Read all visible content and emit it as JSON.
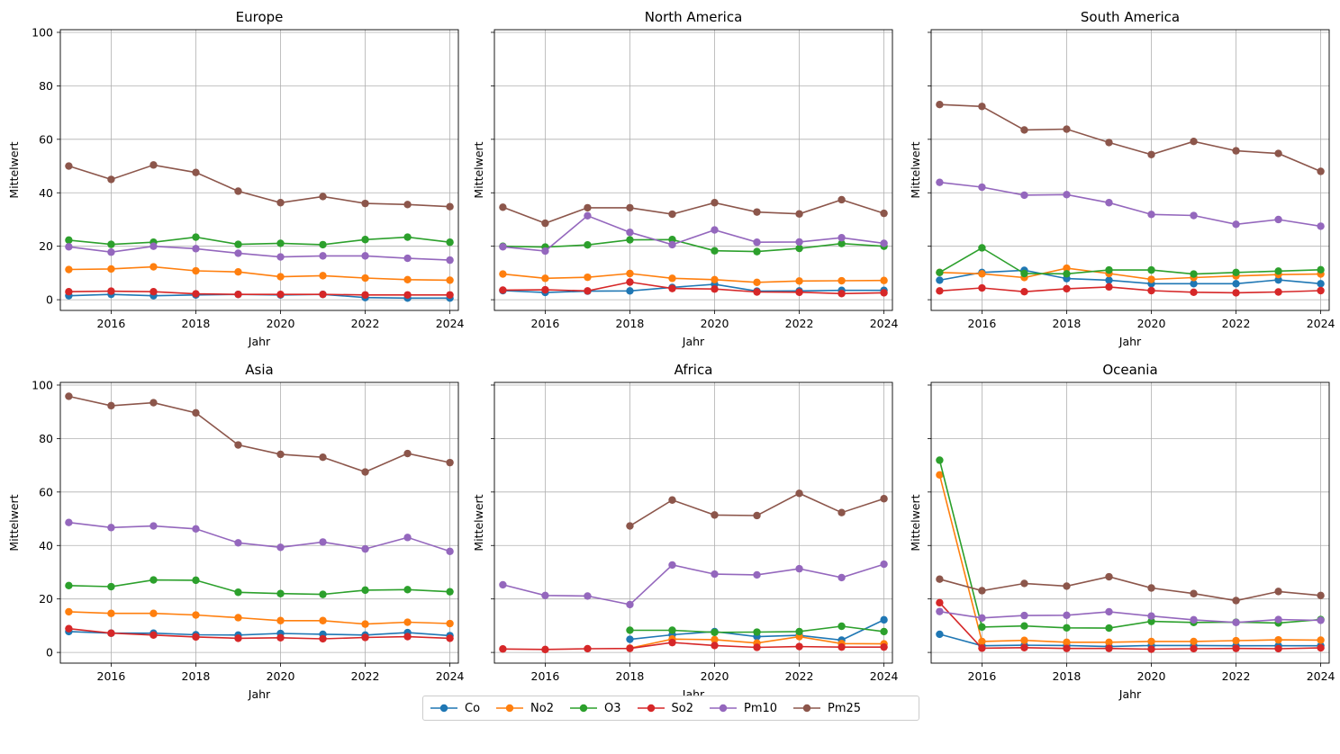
{
  "chart_data": {
    "type": "line",
    "xlabel": "Jahr",
    "ylabel": "Mittelwert",
    "xlim": [
      2014.8,
      2024.2
    ],
    "ylim": [
      -4,
      101
    ],
    "xticks": [
      2016,
      2018,
      2020,
      2022,
      2024
    ],
    "yticks": [
      0,
      20,
      40,
      60,
      80,
      100
    ],
    "grid": true,
    "legend_placement": "bottom-center",
    "legend": [
      {
        "name": "Co",
        "color": "#1f77b4"
      },
      {
        "name": "No2",
        "color": "#ff7f0e"
      },
      {
        "name": "O3",
        "color": "#2ca02c"
      },
      {
        "name": "So2",
        "color": "#d62728"
      },
      {
        "name": "Pm10",
        "color": "#9467bd"
      },
      {
        "name": "Pm25",
        "color": "#8c564b"
      }
    ],
    "panels": [
      {
        "title": "Europe",
        "series": [
          {
            "name": "Co",
            "x": [
              2015,
              2016,
              2017,
              2018,
              2019,
              2020,
              2021,
              2022,
              2023,
              2024
            ],
            "values": [
              1.5,
              2.0,
              1.5,
              1.8,
              2.0,
              1.8,
              2.0,
              0.8,
              0.6,
              0.6
            ]
          },
          {
            "name": "No2",
            "x": [
              2015,
              2016,
              2017,
              2018,
              2019,
              2020,
              2021,
              2022,
              2023,
              2024
            ],
            "values": [
              11.3,
              11.5,
              12.3,
              10.8,
              10.4,
              8.6,
              9.0,
              8.1,
              7.5,
              7.3
            ]
          },
          {
            "name": "O3",
            "x": [
              2015,
              2016,
              2017,
              2018,
              2019,
              2020,
              2021,
              2022,
              2023,
              2024
            ],
            "values": [
              22.3,
              20.7,
              21.5,
              23.4,
              20.7,
              21.1,
              20.6,
              22.5,
              23.4,
              21.5
            ]
          },
          {
            "name": "So2",
            "x": [
              2015,
              2016,
              2017,
              2018,
              2019,
              2020,
              2021,
              2022,
              2023,
              2024
            ],
            "values": [
              3.0,
              3.2,
              3.0,
              2.2,
              2.0,
              2.0,
              2.0,
              1.8,
              1.8,
              1.8
            ]
          },
          {
            "name": "Pm10",
            "x": [
              2015,
              2016,
              2017,
              2018,
              2019,
              2020,
              2021,
              2022,
              2023,
              2024
            ],
            "values": [
              19.8,
              17.8,
              20.0,
              19.1,
              17.4,
              16.0,
              16.4,
              16.4,
              15.5,
              14.8
            ]
          },
          {
            "name": "Pm25",
            "x": [
              2015,
              2016,
              2017,
              2018,
              2019,
              2020,
              2021,
              2022,
              2023,
              2024
            ],
            "values": [
              50.0,
              45.0,
              50.4,
              47.6,
              40.6,
              36.3,
              38.6,
              36.0,
              35.6,
              34.8
            ]
          }
        ]
      },
      {
        "title": "North America",
        "series": [
          {
            "name": "Co",
            "x": [
              2015,
              2016,
              2017,
              2018,
              2019,
              2020,
              2021,
              2022,
              2023,
              2024
            ],
            "values": [
              3.4,
              2.7,
              3.2,
              3.3,
              4.6,
              5.8,
              3.2,
              3.3,
              3.5,
              3.5
            ]
          },
          {
            "name": "No2",
            "x": [
              2015,
              2016,
              2017,
              2018,
              2019,
              2020,
              2021,
              2022,
              2023,
              2024
            ],
            "values": [
              9.6,
              8.0,
              8.4,
              9.8,
              8.0,
              7.5,
              6.5,
              7.0,
              7.1,
              7.2
            ]
          },
          {
            "name": "O3",
            "x": [
              2015,
              2016,
              2017,
              2018,
              2019,
              2020,
              2021,
              2022,
              2023,
              2024
            ],
            "values": [
              20.0,
              19.7,
              20.5,
              22.4,
              22.5,
              18.3,
              18.0,
              19.2,
              21.0,
              20.0
            ]
          },
          {
            "name": "So2",
            "x": [
              2015,
              2016,
              2017,
              2018,
              2019,
              2020,
              2021,
              2022,
              2023,
              2024
            ],
            "values": [
              3.6,
              3.7,
              3.3,
              6.6,
              4.2,
              4.0,
              2.9,
              2.8,
              2.3,
              2.6
            ]
          },
          {
            "name": "Pm10",
            "x": [
              2015,
              2016,
              2017,
              2018,
              2019,
              2020,
              2021,
              2022,
              2023,
              2024
            ],
            "values": [
              19.8,
              18.2,
              31.4,
              25.2,
              20.6,
              26.1,
              21.5,
              21.6,
              23.2,
              21.1
            ]
          },
          {
            "name": "Pm25",
            "x": [
              2015,
              2016,
              2017,
              2018,
              2019,
              2020,
              2021,
              2022,
              2023,
              2024
            ],
            "values": [
              34.6,
              28.6,
              34.4,
              34.4,
              32.0,
              36.3,
              32.8,
              32.1,
              37.4,
              32.3
            ]
          }
        ]
      },
      {
        "title": "South America",
        "series": [
          {
            "name": "Co",
            "x": [
              2015,
              2016,
              2017,
              2018,
              2019,
              2020,
              2021,
              2022,
              2023,
              2024
            ],
            "values": [
              7.3,
              10.2,
              11.0,
              7.9,
              7.3,
              6.0,
              6.0,
              6.0,
              7.4,
              6.0
            ]
          },
          {
            "name": "No2",
            "x": [
              2015,
              2016,
              2017,
              2018,
              2019,
              2020,
              2021,
              2022,
              2023,
              2024
            ],
            "values": [
              10.2,
              9.7,
              8.3,
              11.8,
              9.8,
              7.6,
              8.3,
              8.9,
              9.4,
              9.6
            ]
          },
          {
            "name": "O3",
            "x": [
              2015,
              2016,
              2017,
              2018,
              2019,
              2020,
              2021,
              2022,
              2023,
              2024
            ],
            "values": [
              10.2,
              19.4,
              9.8,
              9.7,
              11.1,
              11.1,
              9.6,
              10.2,
              10.7,
              11.2
            ]
          },
          {
            "name": "So2",
            "x": [
              2015,
              2016,
              2017,
              2018,
              2019,
              2020,
              2021,
              2022,
              2023,
              2024
            ],
            "values": [
              3.3,
              4.4,
              3.0,
              4.1,
              4.8,
              3.4,
              2.8,
              2.6,
              2.9,
              3.4
            ]
          },
          {
            "name": "Pm10",
            "x": [
              2015,
              2016,
              2017,
              2018,
              2019,
              2020,
              2021,
              2022,
              2023,
              2024
            ],
            "values": [
              43.9,
              42.1,
              39.1,
              39.3,
              36.3,
              31.9,
              31.5,
              28.2,
              30.0,
              27.5
            ]
          },
          {
            "name": "Pm25",
            "x": [
              2015,
              2016,
              2017,
              2018,
              2019,
              2020,
              2021,
              2022,
              2023,
              2024
            ],
            "values": [
              73.0,
              72.3,
              63.5,
              63.8,
              58.8,
              54.3,
              59.2,
              55.7,
              54.7,
              48.0
            ]
          }
        ]
      },
      {
        "title": "Asia",
        "series": [
          {
            "name": "Co",
            "x": [
              2015,
              2016,
              2017,
              2018,
              2019,
              2020,
              2021,
              2022,
              2023,
              2024
            ],
            "values": [
              7.8,
              7.2,
              7.2,
              6.6,
              6.5,
              7.1,
              6.8,
              6.5,
              7.4,
              6.3
            ]
          },
          {
            "name": "No2",
            "x": [
              2015,
              2016,
              2017,
              2018,
              2019,
              2020,
              2021,
              2022,
              2023,
              2024
            ],
            "values": [
              15.2,
              14.6,
              14.6,
              14.0,
              13.0,
              11.9,
              11.9,
              10.6,
              11.3,
              10.8
            ]
          },
          {
            "name": "O3",
            "x": [
              2015,
              2016,
              2017,
              2018,
              2019,
              2020,
              2021,
              2022,
              2023,
              2024
            ],
            "values": [
              25.0,
              24.6,
              27.1,
              27.0,
              22.5,
              22.0,
              21.7,
              23.3,
              23.5,
              22.7
            ]
          },
          {
            "name": "So2",
            "x": [
              2015,
              2016,
              2017,
              2018,
              2019,
              2020,
              2021,
              2022,
              2023,
              2024
            ],
            "values": [
              8.9,
              7.2,
              6.5,
              5.8,
              5.3,
              5.5,
              5.1,
              5.6,
              5.9,
              5.3
            ]
          },
          {
            "name": "Pm10",
            "x": [
              2015,
              2016,
              2017,
              2018,
              2019,
              2020,
              2021,
              2022,
              2023,
              2024
            ],
            "values": [
              48.6,
              46.7,
              47.3,
              46.2,
              41.0,
              39.3,
              41.3,
              38.7,
              43.0,
              37.8
            ]
          },
          {
            "name": "Pm25",
            "x": [
              2015,
              2016,
              2017,
              2018,
              2019,
              2020,
              2021,
              2022,
              2023,
              2024
            ],
            "values": [
              95.8,
              92.3,
              93.4,
              89.6,
              77.6,
              74.1,
              73.0,
              67.5,
              74.4,
              71.0
            ]
          }
        ]
      },
      {
        "title": "Africa",
        "series": [
          {
            "name": "Co",
            "x": [
              2018,
              2019,
              2020,
              2021,
              2022,
              2023,
              2024
            ],
            "values": [
              4.9,
              6.6,
              7.8,
              5.9,
              6.4,
              4.6,
              12.2
            ]
          },
          {
            "name": "No2",
            "x": [
              2018,
              2019,
              2020,
              2021,
              2022,
              2023,
              2024
            ],
            "values": [
              1.6,
              5.0,
              4.8,
              3.5,
              5.9,
              3.3,
              3.2
            ]
          },
          {
            "name": "O3",
            "x": [
              2018,
              2019,
              2020,
              2021,
              2022,
              2023,
              2024
            ],
            "values": [
              8.3,
              8.3,
              7.5,
              7.6,
              7.8,
              9.8,
              7.8
            ]
          },
          {
            "name": "So2",
            "x": [
              2015,
              2016,
              2017,
              2018,
              2019,
              2020,
              2021,
              2022,
              2023,
              2024
            ],
            "values": [
              1.3,
              1.1,
              1.4,
              1.5,
              3.7,
              2.6,
              1.9,
              2.2,
              2.0,
              2.0
            ]
          },
          {
            "name": "Pm10",
            "x": [
              2015,
              2016,
              2017,
              2018,
              2019,
              2020,
              2021,
              2022,
              2023,
              2024
            ],
            "values": [
              25.3,
              21.3,
              21.1,
              17.9,
              32.7,
              29.3,
              29.0,
              31.3,
              28.0,
              33.0
            ]
          },
          {
            "name": "Pm25",
            "x": [
              2018,
              2019,
              2020,
              2021,
              2022,
              2023,
              2024
            ],
            "values": [
              47.3,
              57.0,
              51.4,
              51.2,
              59.5,
              52.3,
              57.5
            ]
          }
        ]
      },
      {
        "title": "Oceania",
        "series": [
          {
            "name": "Co",
            "x": [
              2015,
              2016,
              2017,
              2018,
              2019,
              2020,
              2021,
              2022,
              2023,
              2024
            ],
            "values": [
              6.8,
              2.5,
              2.7,
              2.6,
              2.2,
              2.6,
              2.6,
              2.5,
              2.5,
              2.5
            ]
          },
          {
            "name": "No2",
            "x": [
              2015,
              2016,
              2017,
              2018,
              2019,
              2020,
              2021,
              2022,
              2023,
              2024
            ],
            "values": [
              66.4,
              4.1,
              4.5,
              3.8,
              3.8,
              4.1,
              4.1,
              4.4,
              4.7,
              4.6
            ]
          },
          {
            "name": "O3",
            "x": [
              2015,
              2016,
              2017,
              2018,
              2019,
              2020,
              2021,
              2022,
              2023,
              2024
            ],
            "values": [
              71.9,
              9.5,
              9.9,
              9.2,
              9.1,
              11.6,
              11.2,
              11.3,
              11.0,
              12.3
            ]
          },
          {
            "name": "So2",
            "x": [
              2015,
              2016,
              2017,
              2018,
              2019,
              2020,
              2021,
              2022,
              2023,
              2024
            ],
            "values": [
              18.6,
              1.6,
              1.8,
              1.5,
              1.5,
              1.2,
              1.4,
              1.5,
              1.4,
              1.7
            ]
          },
          {
            "name": "Pm10",
            "x": [
              2015,
              2016,
              2017,
              2018,
              2019,
              2020,
              2021,
              2022,
              2023,
              2024
            ],
            "values": [
              15.3,
              12.9,
              13.8,
              13.9,
              15.2,
              13.6,
              12.2,
              11.2,
              12.3,
              12.0
            ]
          },
          {
            "name": "Pm25",
            "x": [
              2015,
              2016,
              2017,
              2018,
              2019,
              2020,
              2021,
              2022,
              2023,
              2024
            ],
            "values": [
              27.4,
              23.1,
              25.8,
              24.8,
              28.3,
              24.1,
              22.0,
              19.4,
              22.8,
              21.3
            ]
          }
        ]
      }
    ]
  }
}
